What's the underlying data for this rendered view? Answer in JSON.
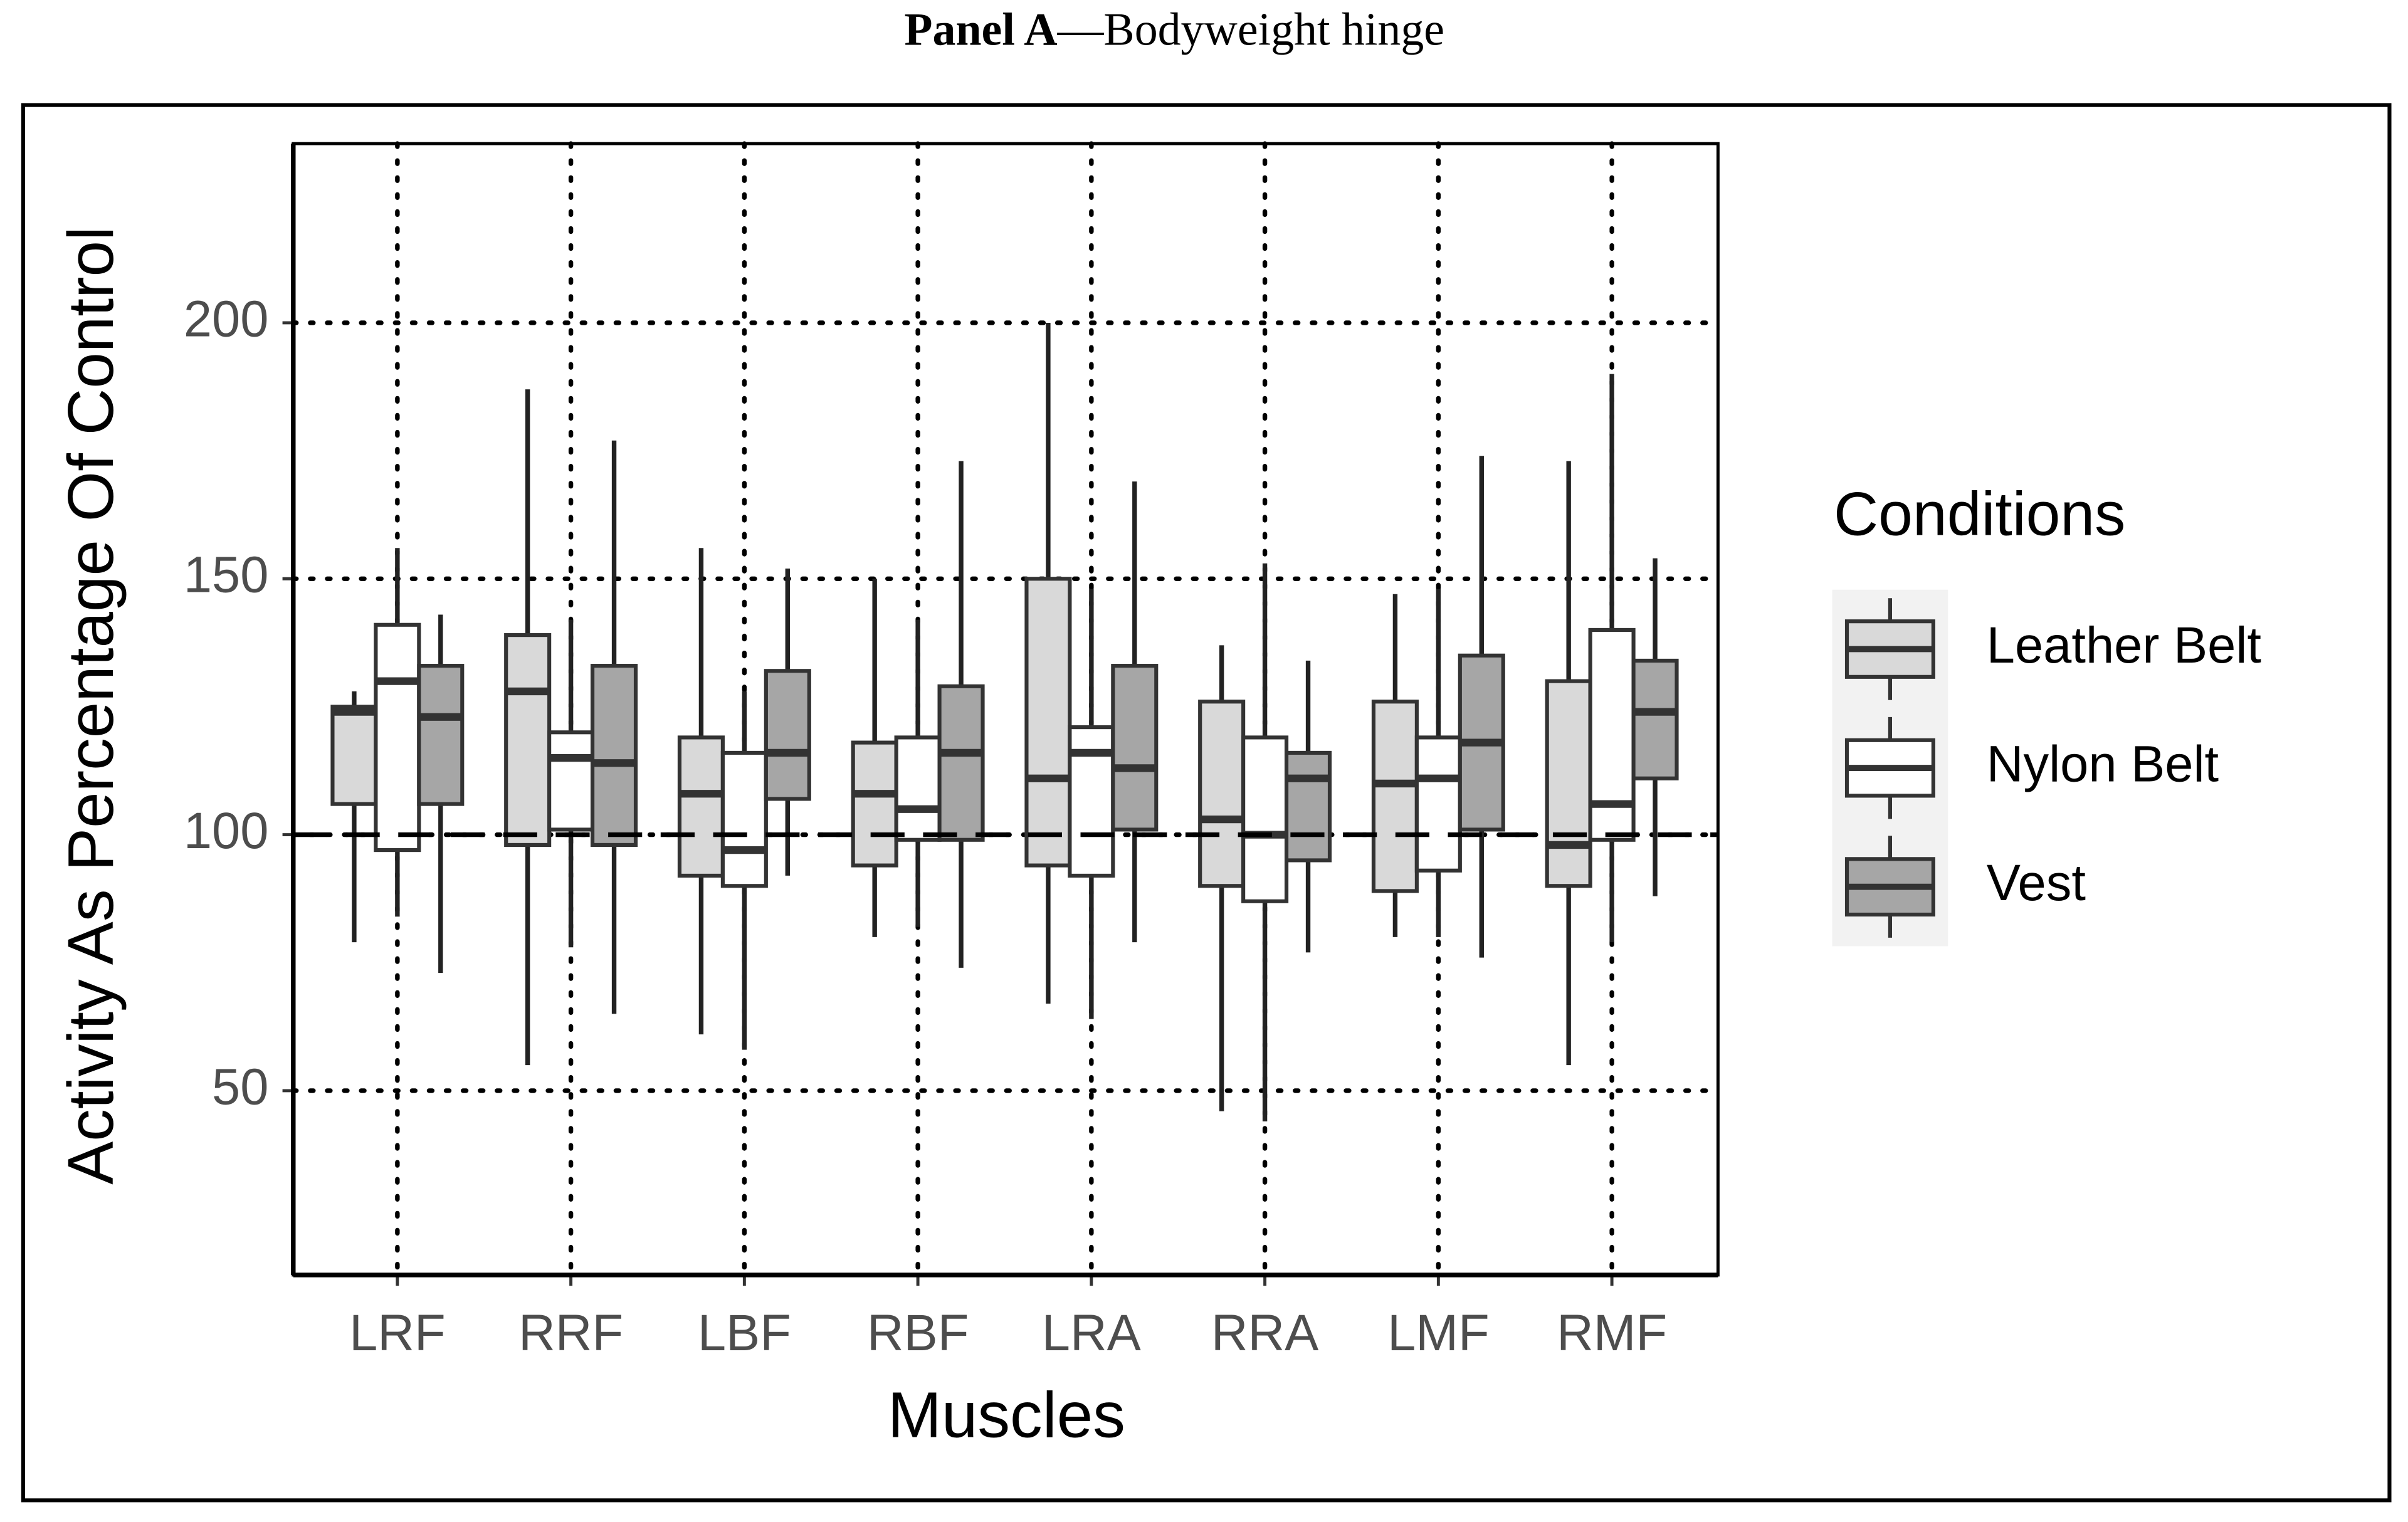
{
  "chart_data": {
    "type": "box",
    "panel_label": "Panel A",
    "title": "—Bodyweight hinge",
    "xlabel": "Muscles",
    "ylabel": "Activity As Percentage Of Control",
    "legend_title": "Conditions",
    "legend_position": "right",
    "grid": true,
    "reference_line": 100,
    "categories": [
      "LRF",
      "RRF",
      "LBF",
      "RBF",
      "LRA",
      "RRA",
      "LMF",
      "RMF"
    ],
    "ylim": [
      14,
      235
    ],
    "yticks": [
      50,
      100,
      150,
      200
    ],
    "series": [
      {
        "name": "Leather Belt",
        "color": "#d9d9d9",
        "low": [
          79,
          55,
          61,
          80,
          67,
          46,
          80,
          55
        ],
        "q1": [
          106,
          98,
          92,
          94,
          94,
          90,
          89,
          90
        ],
        "median": [
          124,
          128,
          108,
          108,
          111,
          103,
          110,
          98
        ],
        "q3": [
          125,
          139,
          119,
          118,
          150,
          126,
          126,
          130
        ],
        "high": [
          128,
          187,
          156,
          150,
          200,
          137,
          147,
          173
        ]
      },
      {
        "name": "Nylon Belt",
        "color": "#ffffff",
        "low": [
          84,
          78,
          58,
          82,
          64,
          44,
          80,
          79
        ],
        "q1": [
          97,
          101,
          90,
          99,
          92,
          87,
          93,
          99
        ],
        "median": [
          130,
          115,
          97,
          105,
          116,
          100,
          111,
          106
        ],
        "q3": [
          141,
          120,
          116,
          119,
          121,
          119,
          119,
          140
        ],
        "high": [
          156,
          142,
          128,
          142,
          148,
          153,
          148,
          190
        ]
      },
      {
        "name": "Vest",
        "color": "#a6a6a6",
        "low": [
          73,
          65,
          92,
          74,
          79,
          77,
          76,
          88
        ],
        "q1": [
          106,
          98,
          107,
          99,
          101,
          95,
          101,
          111
        ],
        "median": [
          123,
          114,
          116,
          116,
          113,
          111,
          118,
          124
        ],
        "q3": [
          133,
          133,
          132,
          129,
          133,
          116,
          135,
          134
        ],
        "high": [
          143,
          177,
          152,
          173,
          169,
          134,
          174,
          154
        ]
      }
    ]
  }
}
